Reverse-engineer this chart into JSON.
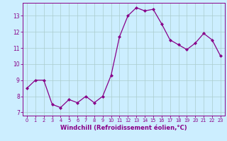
{
  "x": [
    0,
    1,
    2,
    3,
    4,
    5,
    6,
    7,
    8,
    9,
    10,
    11,
    12,
    13,
    14,
    15,
    16,
    17,
    18,
    19,
    20,
    21,
    22,
    23
  ],
  "y": [
    8.5,
    9.0,
    9.0,
    7.5,
    7.3,
    7.8,
    7.6,
    8.0,
    7.6,
    8.0,
    9.3,
    11.7,
    13.0,
    13.5,
    13.3,
    13.4,
    12.5,
    11.5,
    11.2,
    10.9,
    11.3,
    11.9,
    11.5,
    10.5
  ],
  "line_color": "#880088",
  "marker": "D",
  "marker_size": 2.0,
  "line_width": 0.9,
  "bg_color": "#cceeff",
  "grid_color": "#aacccc",
  "xlabel": "Windchill (Refroidissement éolien,°C)",
  "ylabel_ticks": [
    7,
    8,
    9,
    10,
    11,
    12,
    13
  ],
  "xlim": [
    -0.5,
    23.5
  ],
  "ylim": [
    6.8,
    13.8
  ],
  "xticks": [
    0,
    1,
    2,
    3,
    4,
    5,
    6,
    7,
    8,
    9,
    10,
    11,
    12,
    13,
    14,
    15,
    16,
    17,
    18,
    19,
    20,
    21,
    22,
    23
  ],
  "tick_color": "#880088",
  "ytick_fontsize": 5.5,
  "xtick_fontsize": 4.8,
  "xlabel_fontsize": 6.0,
  "spine_color": "#880088"
}
